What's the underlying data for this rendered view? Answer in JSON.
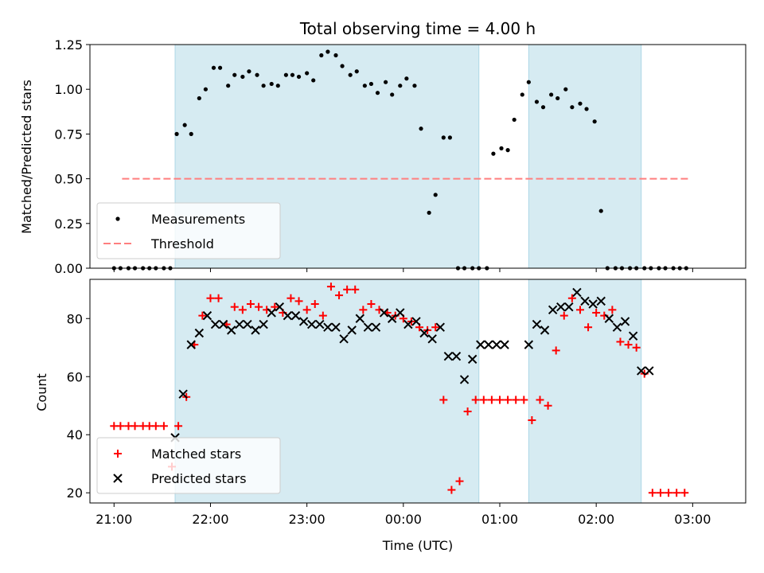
{
  "title": "Total observing time = 4.00 h",
  "xlabel": "Time (UTC)",
  "colors": {
    "shade": "#add8e6",
    "measurement": "#000000",
    "threshold": "#ff7f7f",
    "matched": "#ff0000",
    "predicted": "#000000"
  },
  "chart_data": [
    {
      "type": "scatter",
      "ylabel": "Matched/Predicted stars",
      "ylim": [
        0,
        1.25
      ],
      "yticks": [
        0.0,
        0.25,
        0.5,
        0.75,
        1.0,
        1.25
      ],
      "ytick_labels": [
        "0.00",
        "0.25",
        "0.50",
        "0.75",
        "1.00",
        "1.25"
      ],
      "xlim_hours": [
        20.75,
        3.55
      ],
      "shaded_intervals": [
        [
          "21:38",
          "00:47"
        ],
        [
          "01:18",
          "02:28"
        ]
      ],
      "legend": {
        "loc": "lower-left",
        "entries": [
          "Measurements",
          "Threshold"
        ]
      },
      "threshold": {
        "name": "Threshold",
        "y": 0.5,
        "x_from": "21:05",
        "x_to": "02:58"
      },
      "series": [
        {
          "name": "Measurements",
          "x": [
            "21:00",
            "21:04",
            "21:09",
            "21:13",
            "21:18",
            "21:22",
            "21:26",
            "21:31",
            "21:35",
            "21:39",
            "21:44",
            "21:48",
            "21:53",
            "21:57",
            "22:02",
            "22:06",
            "22:11",
            "22:15",
            "22:20",
            "22:24",
            "22:29",
            "22:33",
            "22:38",
            "22:42",
            "22:47",
            "22:51",
            "22:55",
            "23:00",
            "23:04",
            "23:09",
            "23:13",
            "23:18",
            "23:22",
            "23:27",
            "23:31",
            "23:36",
            "23:40",
            "23:44",
            "23:49",
            "23:53",
            "23:58",
            "00:02",
            "00:07",
            "00:11",
            "00:16",
            "00:20",
            "00:25",
            "00:29",
            "00:34",
            "00:38",
            "00:43",
            "00:47",
            "00:52",
            "00:56",
            "01:01",
            "01:05",
            "01:09",
            "01:14",
            "01:18",
            "01:23",
            "01:27",
            "01:32",
            "01:36",
            "01:41",
            "01:45",
            "01:50",
            "01:54",
            "01:59",
            "02:03",
            "02:07",
            "02:12",
            "02:16",
            "02:21",
            "02:25",
            "02:30",
            "02:34",
            "02:39",
            "02:43",
            "02:48",
            "02:52",
            "02:56"
          ],
          "y": [
            0,
            0,
            0,
            0,
            0,
            0,
            0,
            0,
            0,
            0.75,
            0.8,
            0.75,
            0.95,
            1.0,
            1.12,
            1.12,
            1.02,
            1.08,
            1.07,
            1.1,
            1.08,
            1.02,
            1.03,
            1.02,
            1.08,
            1.08,
            1.07,
            1.09,
            1.05,
            1.19,
            1.21,
            1.19,
            1.13,
            1.08,
            1.1,
            1.02,
            1.03,
            0.98,
            1.04,
            0.97,
            1.02,
            1.06,
            1.02,
            0.78,
            0.31,
            0.41,
            0.73,
            0.73,
            0,
            0,
            0,
            0,
            0,
            0.64,
            0.67,
            0.66,
            0.83,
            0.97,
            1.04,
            0.93,
            0.9,
            0.97,
            0.95,
            1.0,
            0.9,
            0.92,
            0.89,
            0.82,
            0.32,
            0,
            0,
            0,
            0,
            0,
            0,
            0,
            0,
            0,
            0,
            0,
            0
          ]
        }
      ]
    },
    {
      "type": "scatter",
      "ylabel": "Count",
      "ylim": [
        16.5,
        93.5
      ],
      "yticks": [
        20,
        40,
        60,
        80
      ],
      "ytick_labels": [
        "20",
        "40",
        "60",
        "80"
      ],
      "xticks": [
        "21:00",
        "22:00",
        "23:00",
        "00:00",
        "01:00",
        "02:00",
        "03:00"
      ],
      "xtick_labels": [
        "21:00",
        "22:00",
        "23:00",
        "00:00",
        "01:00",
        "02:00",
        "03:00"
      ],
      "xlim_hours": [
        20.75,
        3.55
      ],
      "shaded_intervals": [
        [
          "21:38",
          "00:47"
        ],
        [
          "01:18",
          "02:28"
        ]
      ],
      "legend": {
        "loc": "lower-left",
        "entries": [
          "Matched stars",
          "Predicted stars"
        ]
      },
      "series": [
        {
          "name": "Matched stars",
          "marker": "+",
          "x": [
            "21:00",
            "21:04",
            "21:09",
            "21:13",
            "21:18",
            "21:22",
            "21:26",
            "21:31",
            "21:36",
            "21:40",
            "21:45",
            "21:50",
            "21:55",
            "22:00",
            "22:05",
            "22:10",
            "22:15",
            "22:20",
            "22:25",
            "22:30",
            "22:35",
            "22:40",
            "22:45",
            "22:50",
            "22:55",
            "23:00",
            "23:05",
            "23:10",
            "23:15",
            "23:20",
            "23:25",
            "23:30",
            "23:35",
            "23:40",
            "23:45",
            "23:50",
            "23:55",
            "00:00",
            "00:05",
            "00:10",
            "00:15",
            "00:20",
            "00:25",
            "00:30",
            "00:35",
            "00:40",
            "00:45",
            "00:50",
            "00:55",
            "01:00",
            "01:05",
            "01:10",
            "01:15",
            "01:20",
            "01:25",
            "01:30",
            "01:35",
            "01:40",
            "01:45",
            "01:50",
            "01:55",
            "02:00",
            "02:05",
            "02:10",
            "02:15",
            "02:20",
            "02:25",
            "02:30",
            "02:35",
            "02:40",
            "02:45",
            "02:50",
            "02:55"
          ],
          "y": [
            43,
            43,
            43,
            43,
            43,
            43,
            43,
            43,
            29,
            43,
            53,
            71,
            81,
            87,
            87,
            78,
            84,
            83,
            85,
            84,
            83,
            84,
            82,
            87,
            86,
            83,
            85,
            81,
            91,
            88,
            90,
            90,
            83,
            85,
            83,
            82,
            81,
            80,
            79,
            77,
            76,
            77,
            52,
            21,
            24,
            48,
            52,
            52,
            52,
            52,
            52,
            52,
            52,
            45,
            52,
            50,
            69,
            81,
            87,
            83,
            77,
            82,
            81,
            83,
            72,
            71,
            70,
            61,
            20,
            20,
            20,
            20,
            20
          ]
        },
        {
          "name": "Predicted stars",
          "marker": "x",
          "x": [
            "21:38",
            "21:43",
            "21:48",
            "21:53",
            "21:58",
            "22:03",
            "22:08",
            "22:13",
            "22:18",
            "22:23",
            "22:28",
            "22:33",
            "22:38",
            "22:43",
            "22:48",
            "22:53",
            "22:58",
            "23:03",
            "23:08",
            "23:13",
            "23:18",
            "23:23",
            "23:28",
            "23:33",
            "23:38",
            "23:43",
            "23:48",
            "23:53",
            "23:58",
            "00:03",
            "00:08",
            "00:13",
            "00:18",
            "00:23",
            "00:28",
            "00:33",
            "00:38",
            "00:43",
            "00:48",
            "00:53",
            "00:58",
            "01:03",
            "01:18",
            "01:23",
            "01:28",
            "01:33",
            "01:38",
            "01:43",
            "01:48",
            "01:53",
            "01:58",
            "02:03",
            "02:08",
            "02:13",
            "02:18",
            "02:23",
            "02:28",
            "02:33"
          ],
          "y": [
            39,
            54,
            71,
            75,
            81,
            78,
            78,
            76,
            78,
            78,
            76,
            78,
            82,
            84,
            81,
            81,
            79,
            78,
            78,
            77,
            77,
            73,
            76,
            80,
            77,
            77,
            82,
            80,
            82,
            78,
            79,
            75,
            73,
            77,
            67,
            67,
            59,
            66,
            71,
            71,
            71,
            71,
            71,
            78,
            76,
            83,
            84,
            84,
            89,
            86,
            85,
            86,
            80,
            77,
            79,
            74,
            62,
            62
          ]
        }
      ]
    }
  ]
}
